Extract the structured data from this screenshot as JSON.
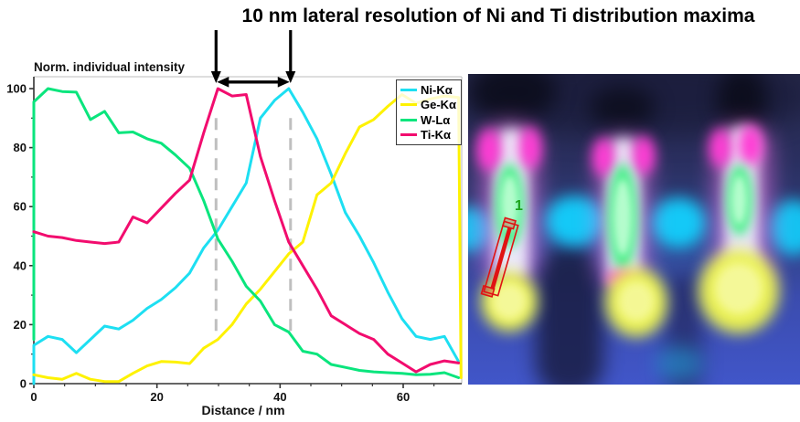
{
  "title": "10 nm lateral resolution of Ni and Ti distribution maxima",
  "chart_data": {
    "type": "line",
    "ylabel": "Norm. individual intensity",
    "xlabel": "Distance / nm",
    "xlim": [
      0,
      69.5
    ],
    "ylim": [
      0,
      104
    ],
    "x_ticks": [
      0,
      20,
      40,
      60
    ],
    "y_ticks": [
      0,
      20,
      40,
      60,
      80,
      100
    ],
    "x_minor_step": 5,
    "y_minor_step": 10,
    "grid": false,
    "legend_position": "top-right",
    "x": [
      0,
      2.3,
      4.6,
      6.9,
      9.2,
      11.5,
      13.8,
      16.1,
      18.4,
      20.7,
      23,
      25.3,
      27.6,
      29.9,
      32.2,
      34.5,
      36.8,
      39.1,
      41.4,
      43.7,
      46,
      48.3,
      50.6,
      52.9,
      55.2,
      57.5,
      59.8,
      62.1,
      64.4,
      66.7,
      69
    ],
    "series": [
      {
        "name": "Ni-Kα",
        "color": "#1ddff2",
        "start_drop": 0,
        "values": [
          13,
          16,
          15,
          10.5,
          15,
          19.5,
          18.5,
          21.5,
          25.5,
          28.5,
          32.5,
          37.5,
          46,
          52,
          60,
          68,
          90,
          96,
          100,
          92,
          83,
          71,
          58,
          50,
          41,
          31,
          22,
          16,
          15,
          16,
          7.5
        ]
      },
      {
        "name": "Ge-Kα",
        "color": "#fef201",
        "end_drop": 2,
        "values": [
          3,
          2,
          1.5,
          3.5,
          1.5,
          0.7,
          0.7,
          3.5,
          6,
          7.5,
          7.3,
          6.8,
          12,
          15,
          20,
          27,
          32,
          38,
          44,
          48,
          64,
          68,
          78,
          87,
          89.5,
          94,
          98,
          95,
          96.5,
          97.5,
          97
        ]
      },
      {
        "name": "W-Lα",
        "color": "#0ae57d",
        "start_drop": 15,
        "values": [
          95.5,
          100,
          99,
          98.8,
          89.5,
          92.3,
          85,
          85.3,
          83,
          81.5,
          77.5,
          73,
          62,
          49,
          41.5,
          33,
          28,
          20,
          17.5,
          11,
          10,
          6.5,
          5.5,
          4.5,
          4,
          3.7,
          3.5,
          3,
          3.2,
          3.7,
          2
        ]
      },
      {
        "name": "Ti-Kα",
        "color": "#f20c6e",
        "values": [
          51.5,
          50,
          49.5,
          48.5,
          48,
          47.5,
          48,
          56.5,
          54.5,
          59.5,
          64.5,
          69,
          85,
          100,
          97.5,
          98,
          77,
          62,
          48,
          40,
          32,
          23,
          20,
          17,
          15,
          10,
          7,
          4,
          6.5,
          7.7,
          7
        ]
      }
    ],
    "dashed_markers_x": [
      29.6,
      41.7
    ],
    "resolution_arrow": {
      "from_x": 29.6,
      "to_x": 41.7
    }
  },
  "edx_map": {
    "roi_label": "1"
  }
}
